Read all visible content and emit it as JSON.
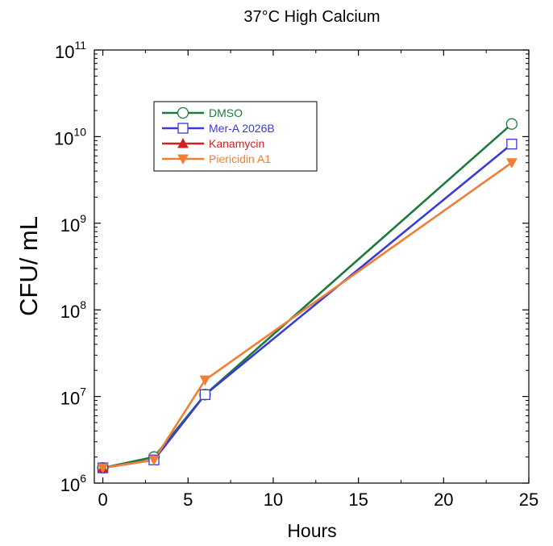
{
  "chart_data": {
    "type": "line",
    "title": "37°C High Calcium",
    "xlabel": "Hours",
    "ylabel": "CFU/ mL",
    "xlim": [
      -0.5,
      25
    ],
    "ylim": [
      1000000,
      100000000000
    ],
    "yscale": "log",
    "grid": false,
    "legend_position": "top-left",
    "x_ticks": [
      {
        "value": 0,
        "label": "0"
      },
      {
        "value": 5,
        "label": "5"
      },
      {
        "value": 10,
        "label": "10"
      },
      {
        "value": 15,
        "label": "15"
      },
      {
        "value": 20,
        "label": "20"
      },
      {
        "value": 25,
        "label": "25"
      }
    ],
    "y_ticks": [
      {
        "exp": 6,
        "base": "10",
        "sup": "6"
      },
      {
        "exp": 7,
        "base": "10",
        "sup": "7"
      },
      {
        "exp": 8,
        "base": "10",
        "sup": "8"
      },
      {
        "exp": 9,
        "base": "10",
        "sup": "9"
      },
      {
        "exp": 10,
        "base": "10",
        "sup": "10"
      },
      {
        "exp": 11,
        "base": "10",
        "sup": "11"
      }
    ],
    "series": [
      {
        "name": "DMSO",
        "color": "#1e7a3c",
        "marker": "circle-open",
        "x": [
          0,
          3,
          6,
          24
        ],
        "y": [
          1500000,
          2000000,
          10500000,
          14000000000
        ]
      },
      {
        "name": "Mer-A 2026B",
        "color": "#3a3ad6",
        "marker": "square-open",
        "x": [
          0,
          3,
          6,
          24
        ],
        "y": [
          1500000,
          1850000,
          10500000,
          8200000000
        ]
      },
      {
        "name": "Kanamycin",
        "color": "#d42020",
        "marker": "triangle-up-filled",
        "x": [
          0
        ],
        "y": [
          1500000
        ]
      },
      {
        "name": "Piericidin A1",
        "color": "#f07f35",
        "marker": "triangle-down-filled",
        "x": [
          0,
          3,
          6,
          24
        ],
        "y": [
          1500000,
          1850000,
          15500000,
          5000000000
        ]
      }
    ]
  }
}
